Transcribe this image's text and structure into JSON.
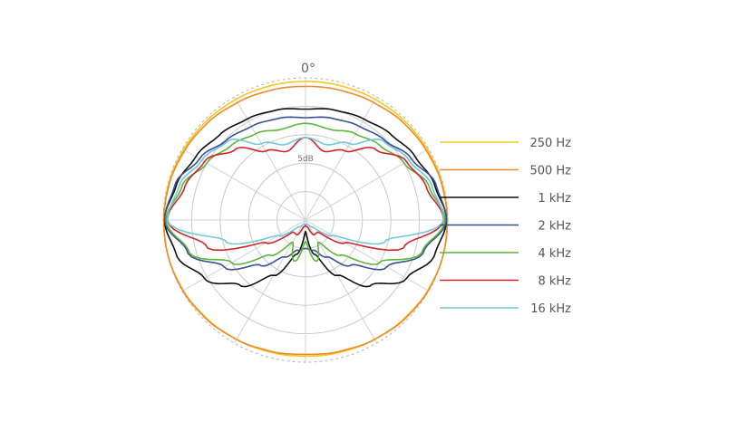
{
  "chart_data": {
    "type": "polar",
    "title": "",
    "angle_label": "0°",
    "ring_label": "5dB",
    "rings": 5,
    "spokes": 12,
    "symmetric": true,
    "legend_position": "right",
    "series": [
      {
        "name": "250 Hz",
        "color": "#f3c81e",
        "theta": [
          0,
          15,
          30,
          45,
          60,
          75,
          90,
          105,
          120,
          135,
          150,
          165,
          180
        ],
        "r": [
          0.975,
          0.976,
          0.98,
          0.985,
          0.99,
          0.994,
          0.997,
          0.998,
          0.992,
          0.98,
          0.97,
          0.962,
          0.958
        ]
      },
      {
        "name": "500 Hz",
        "color": "#f0892a",
        "theta": [
          0,
          15,
          30,
          45,
          60,
          75,
          90,
          105,
          120,
          135,
          150,
          165,
          180
        ],
        "r": [
          0.94,
          0.945,
          0.955,
          0.97,
          0.98,
          0.99,
          0.995,
          0.998,
          0.995,
          0.985,
          0.97,
          0.955,
          0.945
        ]
      },
      {
        "name": "1 kHz",
        "color": "#111111",
        "theta": [
          0,
          15,
          30,
          45,
          60,
          75,
          90,
          105,
          120,
          135,
          150,
          165,
          180
        ],
        "r": [
          0.78,
          0.8,
          0.82,
          0.85,
          0.89,
          0.94,
          0.99,
          0.94,
          0.82,
          0.65,
          0.45,
          0.25,
          0.08
        ]
      },
      {
        "name": "2 kHz",
        "color": "#3b4f98",
        "theta": [
          0,
          15,
          30,
          45,
          60,
          75,
          90,
          105,
          120,
          135,
          150,
          165,
          180
        ],
        "r": [
          0.72,
          0.74,
          0.76,
          0.79,
          0.86,
          0.95,
          0.99,
          0.86,
          0.66,
          0.45,
          0.3,
          0.22,
          0.2
        ]
      },
      {
        "name": "4 kHz",
        "color": "#5db53a",
        "theta": [
          0,
          15,
          30,
          45,
          60,
          75,
          90,
          105,
          120,
          135,
          150,
          165,
          180
        ],
        "r": [
          0.68,
          0.66,
          0.7,
          0.74,
          0.8,
          0.9,
          0.98,
          0.85,
          0.6,
          0.35,
          0.18,
          0.3,
          0.15
        ]
      },
      {
        "name": "8 kHz",
        "color": "#d3242a",
        "theta": [
          0,
          15,
          30,
          45,
          60,
          75,
          90,
          105,
          120,
          135,
          150,
          165,
          180
        ],
        "r": [
          0.58,
          0.5,
          0.56,
          0.7,
          0.82,
          0.88,
          0.97,
          0.72,
          0.32,
          0.12,
          0.12,
          0.05,
          0.04
        ]
      },
      {
        "name": "16 kHz",
        "color": "#6fc9d6",
        "theta": [
          0,
          15,
          30,
          45,
          60,
          75,
          90,
          105,
          120,
          135,
          150,
          165,
          180
        ],
        "r": [
          0.58,
          0.55,
          0.62,
          0.78,
          0.84,
          0.92,
          0.97,
          0.58,
          0.22,
          0.07,
          0.04,
          0.03,
          0.03
        ]
      }
    ]
  }
}
